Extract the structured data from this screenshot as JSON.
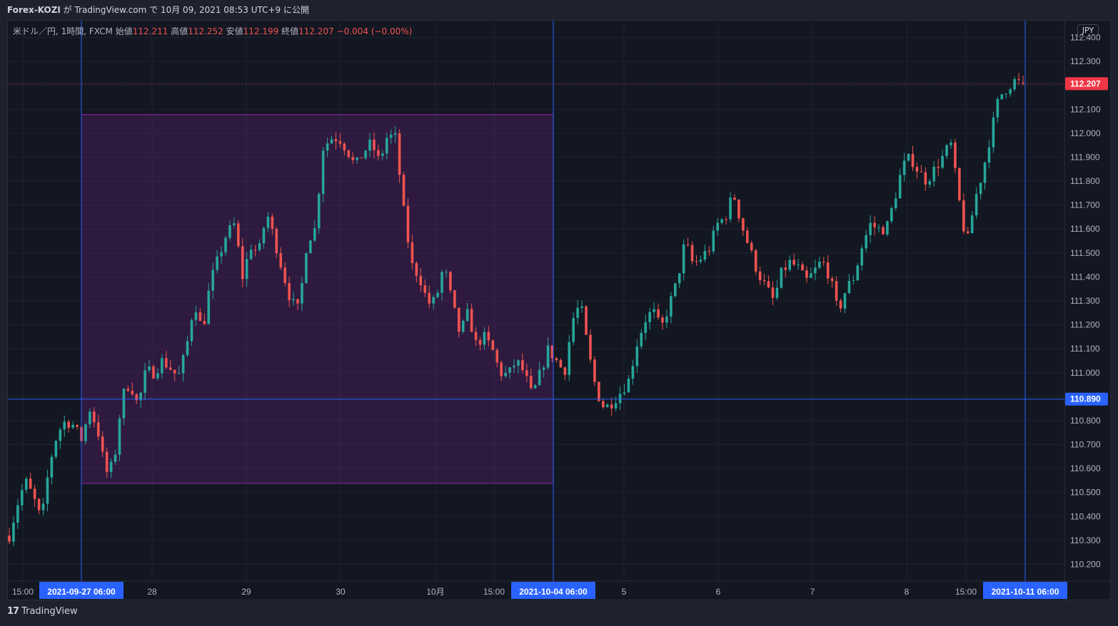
{
  "header": {
    "publisher": "Forex-KOZI",
    "published_text": " が TradingView.com で 10月 09, 2021 08:53 UTC+9 に公開"
  },
  "legend": {
    "symbol": "米ドル／円, 1時間, FXCM",
    "open_label": "始値",
    "open": "112.211",
    "high_label": "高値",
    "high": "112.252",
    "low_label": "安値",
    "low": "112.199",
    "close_label": "終値",
    "close": "112.207",
    "change": "−0.004 (−0.00%)"
  },
  "currency_button": "JPY",
  "footer": {
    "brand": "TradingView",
    "logo": "17"
  },
  "colors": {
    "up": "#26a69a",
    "down": "#ef5350",
    "range_fill": "#9c27b0",
    "crosshair": "#2962ff",
    "price_tag": "#f23645",
    "background": "#131722"
  },
  "chart_data": {
    "type": "candlestick",
    "symbol": "USD/JPY",
    "interval": "1h",
    "ylim": [
      110.13,
      112.47
    ],
    "y_ticks": [
      "112.400",
      "112.300",
      "112.200",
      "112.100",
      "112.000",
      "111.900",
      "111.800",
      "111.700",
      "111.600",
      "111.500",
      "111.400",
      "111.300",
      "111.200",
      "111.100",
      "111.000",
      "110.900",
      "110.800",
      "110.700",
      "110.600",
      "110.500",
      "110.400",
      "110.300",
      "110.200"
    ],
    "x_labels": [
      "15:00",
      "28",
      "29",
      "30",
      "10月",
      "15:00",
      "5",
      "6",
      "7",
      "8",
      "15:00"
    ],
    "x_highlight_labels": [
      "2021-09-27   06:00",
      "2021-10-04   06:00",
      "2021-10-11   06:00"
    ],
    "last_price": "112.207",
    "crosshair_price": "110.890",
    "range_box": {
      "start": "2021-09-27 06:00",
      "end": "2021-10-04 06:00",
      "high": 112.078,
      "low": 110.538
    },
    "candles_keypoints": [
      110.32,
      110.45,
      110.55,
      110.48,
      110.38,
      110.62,
      110.75,
      110.8,
      110.78,
      110.72,
      110.85,
      110.76,
      110.58,
      110.62,
      110.9,
      110.96,
      110.86,
      111.01,
      111.0,
      111.05,
      111.02,
      110.98,
      111.1,
      111.3,
      111.17,
      111.38,
      111.48,
      111.58,
      111.62,
      111.4,
      111.53,
      111.5,
      111.67,
      111.55,
      111.42,
      111.3,
      111.26,
      111.55,
      111.6,
      111.94,
      111.98,
      111.98,
      111.93,
      111.86,
      111.92,
      111.96,
      111.88,
      111.99,
      111.98,
      111.68,
      111.45,
      111.4,
      111.29,
      111.3,
      111.45,
      111.3,
      111.16,
      111.25,
      111.12,
      111.15,
      111.1,
      111.0,
      110.99,
      111.05,
      111.0,
      110.9,
      111.0,
      111.1,
      111.05,
      111.0,
      111.22,
      111.29,
      111.08,
      110.92,
      110.85,
      110.88,
      110.92,
      110.97,
      111.12,
      111.22,
      111.26,
      111.18,
      111.28,
      111.38,
      111.55,
      111.45,
      111.48,
      111.52,
      111.62,
      111.65,
      111.75,
      111.62,
      111.52,
      111.42,
      111.36,
      111.3,
      111.42,
      111.46,
      111.44,
      111.38,
      111.42,
      111.47,
      111.4,
      111.25,
      111.35,
      111.4,
      111.53,
      111.62,
      111.6,
      111.6,
      111.72,
      111.86,
      111.9,
      111.84,
      111.8,
      111.85,
      111.9,
      111.96,
      111.73,
      111.53,
      111.72,
      111.84,
      112.0,
      112.15,
      112.19,
      112.22,
      112.21
    ]
  }
}
